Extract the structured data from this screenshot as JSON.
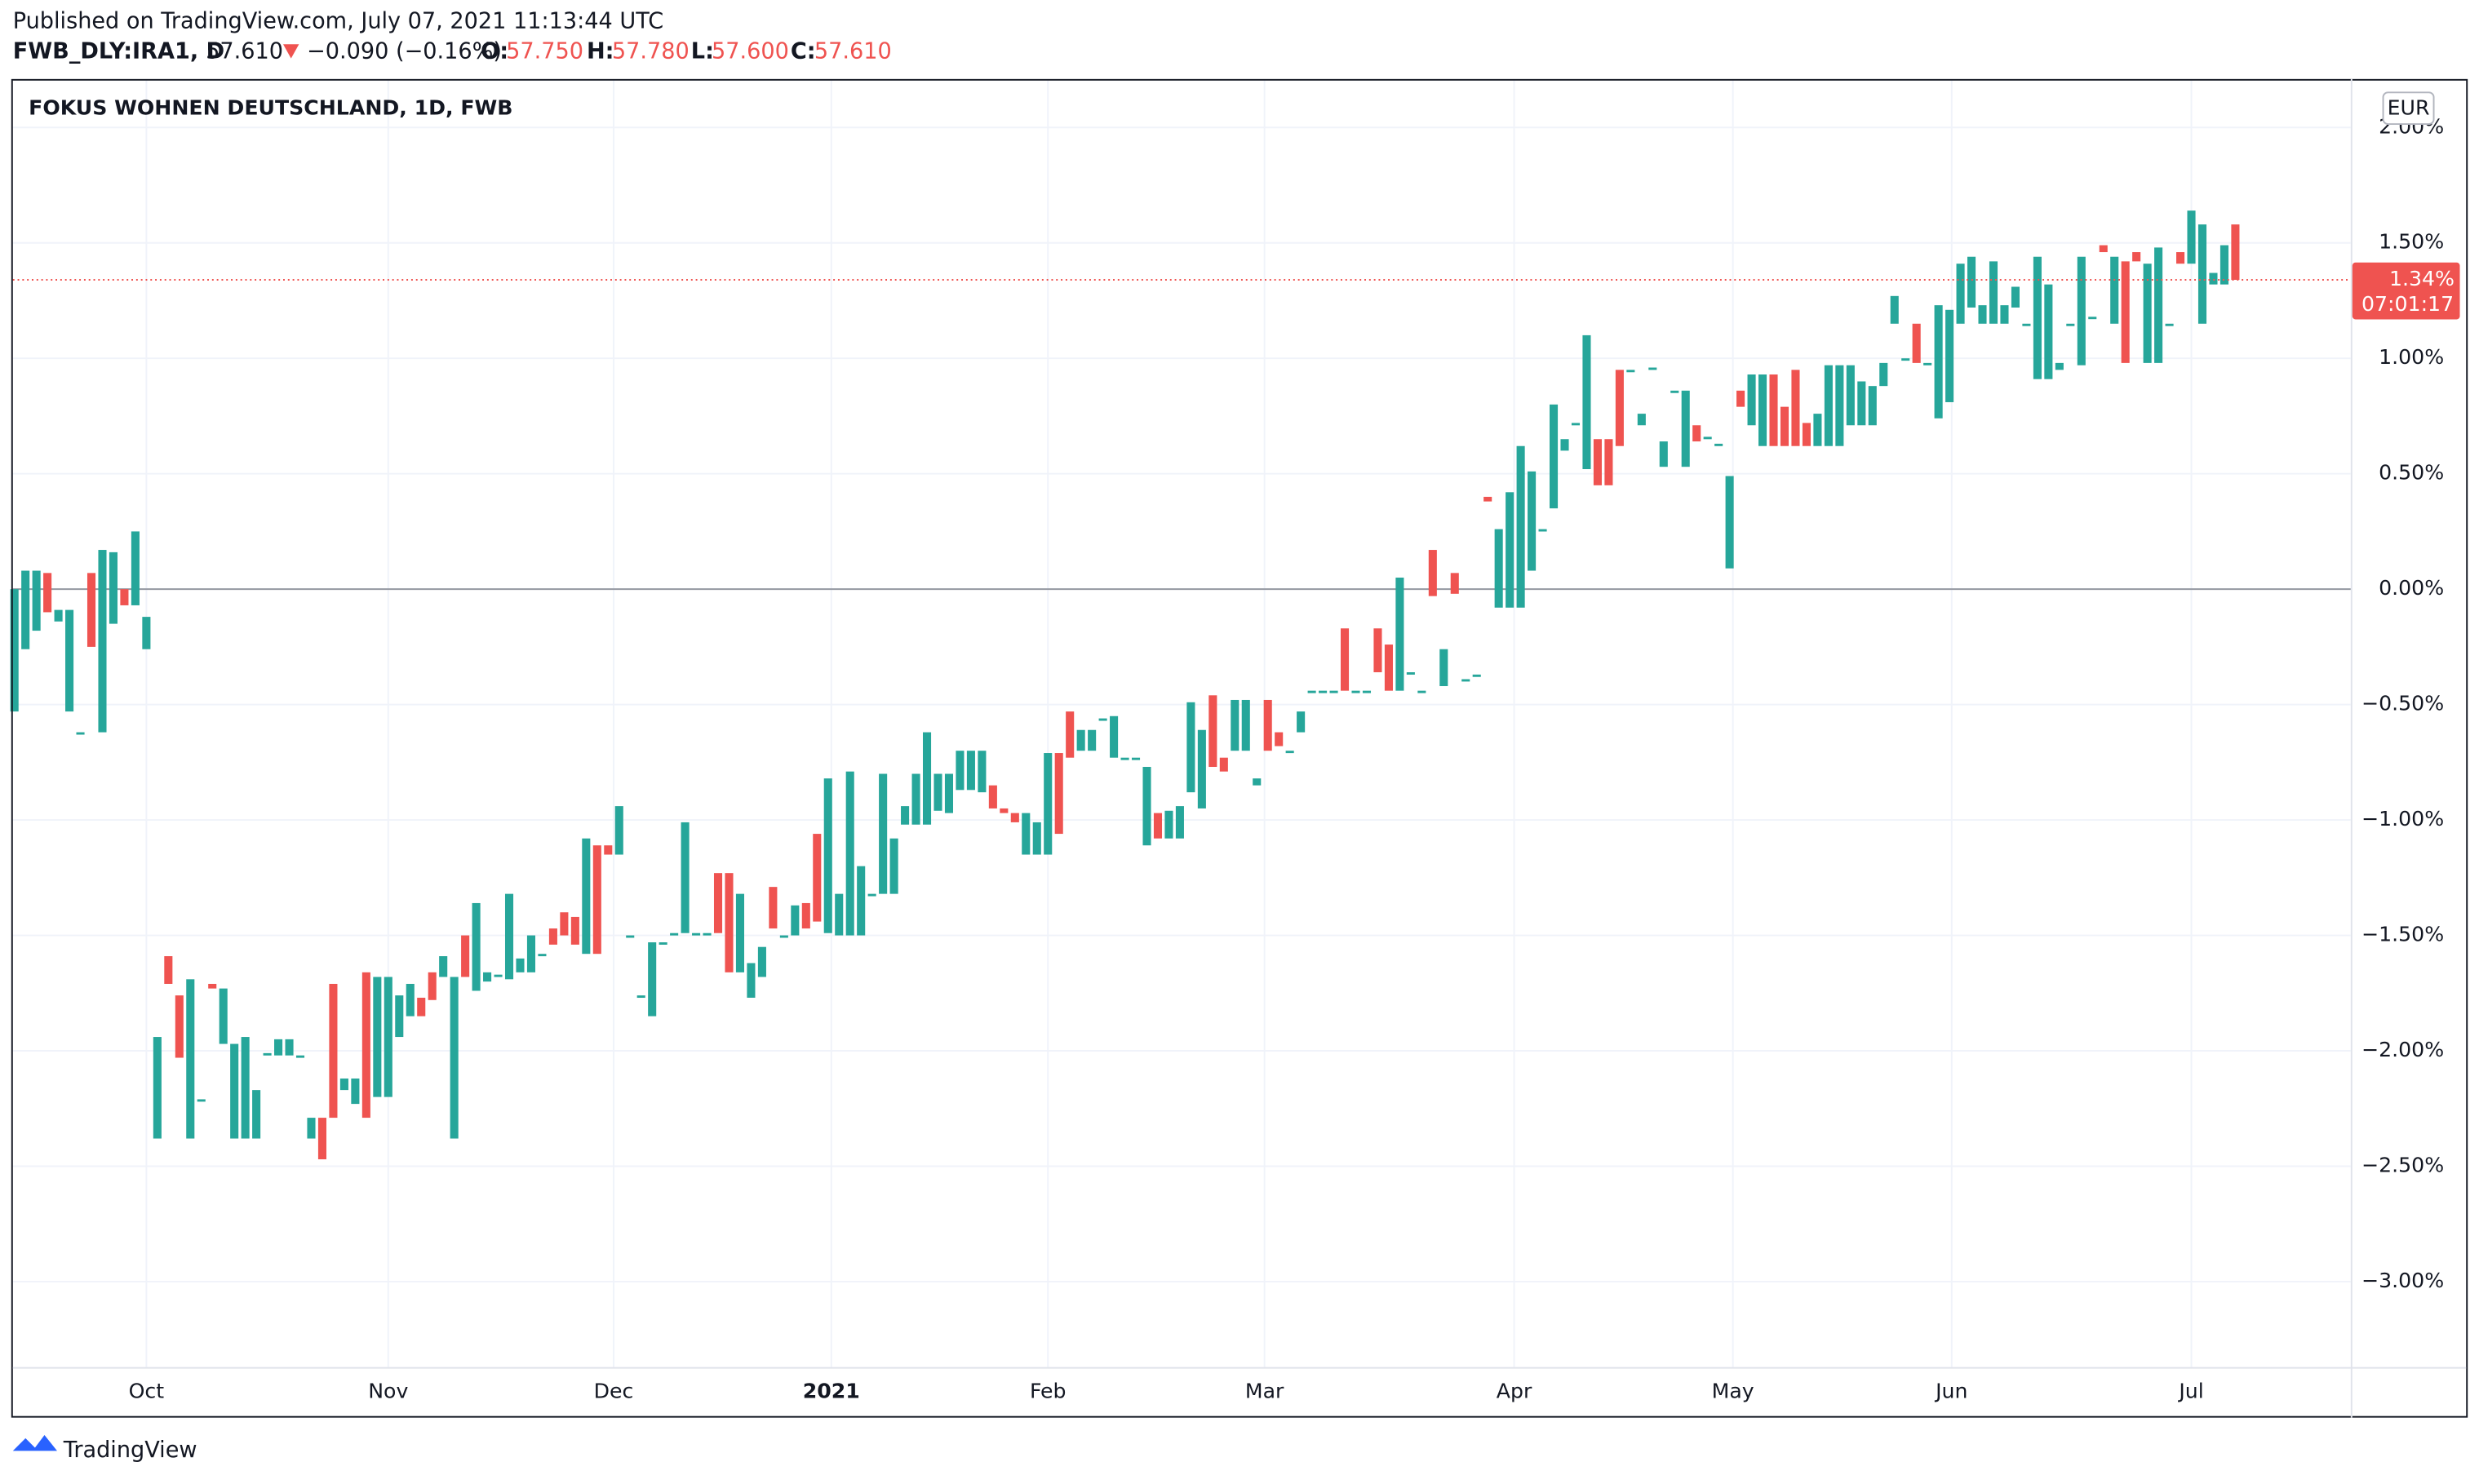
{
  "header": {
    "published": "Published on TradingView.com, July 07, 2021 11:13:44 UTC",
    "symbol": "FWB_DLY:IRA1, D",
    "last": "57.610",
    "change": "−0.090 (−0.16%)",
    "o_label": "O:",
    "o": "57.750",
    "h_label": "H:",
    "h": "57.780",
    "l_label": "L:",
    "l": "57.600",
    "c_label": "C:",
    "c": "57.610"
  },
  "footer": {
    "brand": "TradingView"
  },
  "chart_data": {
    "type": "candlestick",
    "title": "FOKUS WOHNEN DEUTSCHLAND, 1D, FWB",
    "currency": "EUR",
    "up_color": "#26a69a",
    "down_color": "#ef5350",
    "grid": true,
    "last_label": "1.34%",
    "countdown": "07:01:17",
    "ylim": [
      -3.37,
      2.21
    ],
    "yticks": [
      {
        "value": 2,
        "label": "2.00%"
      },
      {
        "value": 1.5,
        "label": "1.50%"
      },
      {
        "value": 1,
        "label": "1.00%"
      },
      {
        "value": 0.5,
        "label": "0.50%"
      },
      {
        "value": 0,
        "label": "0.00%"
      },
      {
        "value": -0.5,
        "label": "−0.50%"
      },
      {
        "value": -1,
        "label": "−1.00%"
      },
      {
        "value": -1.5,
        "label": "−1.50%"
      },
      {
        "value": -2,
        "label": "−2.00%"
      },
      {
        "value": -2.5,
        "label": "−2.50%"
      },
      {
        "value": -3,
        "label": "−3.00%"
      }
    ],
    "xticks": [
      {
        "value": 12,
        "label": "Oct"
      },
      {
        "value": 34,
        "label": "Nov"
      },
      {
        "value": 54.5,
        "label": "Dec"
      },
      {
        "value": 74.3,
        "label": "2021"
      },
      {
        "value": 94,
        "label": "Feb"
      },
      {
        "value": 113.7,
        "label": "Mar"
      },
      {
        "value": 136.4,
        "label": "Apr"
      },
      {
        "value": 156.3,
        "label": "May"
      },
      {
        "value": 176.2,
        "label": "Jun"
      },
      {
        "value": 198,
        "label": "Jul"
      }
    ],
    "open": [
      -0.53,
      -0.26,
      -0.18,
      0.07,
      -0.14,
      -0.53,
      -0.62,
      0.07,
      -0.62,
      -0.15,
      0.0,
      -0.07,
      -0.26,
      -2.38,
      -1.59,
      -1.76,
      -2.38,
      -2.21,
      -1.71,
      -1.97,
      -2.38,
      -2.38,
      -2.38,
      -2.01,
      -2.02,
      -2.02,
      -2.02,
      -2.38,
      -2.29,
      -1.71,
      -2.17,
      -2.23,
      -1.66,
      -2.2,
      -2.2,
      -1.94,
      -1.85,
      -1.77,
      -1.66,
      -1.68,
      -2.38,
      -1.5,
      -1.74,
      -1.7,
      -1.67,
      -1.69,
      -1.66,
      -1.66,
      -1.58,
      -1.47,
      -1.4,
      -1.42,
      -1.58,
      -1.11,
      -1.11,
      -1.15,
      -1.5,
      -1.76,
      -1.85,
      -1.53,
      -1.49,
      -1.49,
      -1.49,
      -1.49,
      -1.23,
      -1.23,
      -1.66,
      -1.77,
      -1.68,
      -1.29,
      -1.5,
      -1.5,
      -1.36,
      -1.06,
      -1.49,
      -1.5,
      -1.5,
      -1.5,
      -1.32,
      -1.32,
      -1.32,
      -1.02,
      -1.02,
      -1.02,
      -0.96,
      -0.97,
      -0.87,
      -0.87,
      -0.88,
      -0.85,
      -0.95,
      -0.97,
      -1.15,
      -1.15,
      -1.15,
      -0.71,
      -0.53,
      -0.7,
      -0.7,
      -0.56,
      -0.73,
      -0.73,
      -0.73,
      -1.11,
      -0.97,
      -1.08,
      -1.08,
      -0.88,
      -0.95,
      -0.46,
      -0.73,
      -0.7,
      -0.7,
      -0.85,
      -0.48,
      -0.62,
      -0.7,
      -0.62,
      -0.44,
      -0.44,
      -0.44,
      -0.17,
      -0.44,
      -0.44,
      -0.17,
      -0.24,
      -0.44,
      -0.36,
      -0.44,
      0.17,
      -0.42,
      0.07,
      -0.39,
      -0.37,
      0.4,
      -0.08,
      -0.08,
      -0.08,
      0.08,
      0.26,
      0.35,
      0.6,
      0.72,
      0.52,
      0.65,
      0.65,
      0.95,
      0.95,
      0.71,
      0.96,
      0.53,
      0.86,
      0.53,
      0.71,
      0.66,
      0.63,
      0.09,
      0.86,
      0.71,
      0.62,
      0.93,
      0.79,
      0.95,
      0.72,
      0.62,
      0.62,
      0.62,
      0.71,
      0.71,
      0.71,
      0.88,
      1.15,
      1.0,
      1.15,
      0.98,
      0.74,
      0.81,
      1.15,
      1.22,
      1.15,
      1.15,
      1.15,
      1.22,
      1.15,
      0.91,
      0.91,
      0.95,
      1.15,
      0.97,
      1.18,
      1.49,
      1.15,
      1.42,
      1.46,
      0.98,
      0.98,
      1.15,
      1.46,
      1.41,
      1.15,
      1.32,
      1.32,
      1.58
    ],
    "close": [
      0.0,
      0.08,
      0.08,
      -0.1,
      -0.09,
      -0.09,
      -0.62,
      -0.25,
      0.17,
      0.16,
      -0.07,
      0.25,
      -0.12,
      -1.94,
      -1.71,
      -2.03,
      -1.69,
      -2.21,
      -1.73,
      -1.73,
      -1.97,
      -1.94,
      -2.17,
      -2.01,
      -1.95,
      -1.95,
      -2.02,
      -2.29,
      -2.47,
      -2.29,
      -2.12,
      -2.12,
      -2.29,
      -1.68,
      -1.68,
      -1.76,
      -1.71,
      -1.85,
      -1.78,
      -1.59,
      -1.68,
      -1.68,
      -1.36,
      -1.66,
      -1.67,
      -1.32,
      -1.6,
      -1.5,
      -1.58,
      -1.54,
      -1.5,
      -1.54,
      -1.08,
      -1.58,
      -1.15,
      -0.94,
      -1.5,
      -1.76,
      -1.53,
      -1.53,
      -1.49,
      -1.01,
      -1.49,
      -1.49,
      -1.49,
      -1.66,
      -1.32,
      -1.62,
      -1.55,
      -1.47,
      -1.5,
      -1.37,
      -1.47,
      -1.44,
      -0.82,
      -1.32,
      -0.79,
      -1.2,
      -1.32,
      -0.8,
      -1.08,
      -0.94,
      -0.8,
      -0.62,
      -0.8,
      -0.8,
      -0.7,
      -0.7,
      -0.7,
      -0.95,
      -0.97,
      -1.01,
      -0.97,
      -1.01,
      -0.71,
      -1.06,
      -0.73,
      -0.61,
      -0.61,
      -0.56,
      -0.55,
      -0.73,
      -0.73,
      -0.77,
      -1.08,
      -0.96,
      -0.94,
      -0.49,
      -0.61,
      -0.77,
      -0.79,
      -0.48,
      -0.48,
      -0.82,
      -0.7,
      -0.68,
      -0.7,
      -0.53,
      -0.44,
      -0.44,
      -0.44,
      -0.44,
      -0.44,
      -0.44,
      -0.36,
      -0.44,
      0.05,
      -0.36,
      -0.44,
      -0.03,
      -0.26,
      -0.02,
      -0.39,
      -0.37,
      0.38,
      0.26,
      0.42,
      0.62,
      0.51,
      0.26,
      0.8,
      0.65,
      0.72,
      1.1,
      0.45,
      0.45,
      0.62,
      0.95,
      0.76,
      0.96,
      0.64,
      0.86,
      0.86,
      0.64,
      0.66,
      0.63,
      0.49,
      0.79,
      0.93,
      0.93,
      0.62,
      0.62,
      0.62,
      0.62,
      0.76,
      0.97,
      0.97,
      0.97,
      0.9,
      0.88,
      0.98,
      1.27,
      1.0,
      0.98,
      0.98,
      1.23,
      1.21,
      1.41,
      1.44,
      1.23,
      1.42,
      1.23,
      1.31,
      1.15,
      1.44,
      1.32,
      0.98,
      1.15,
      1.44,
      1.18,
      1.46,
      1.44,
      0.98,
      1.42,
      1.41,
      1.48,
      1.15,
      1.41,
      1.64,
      1.58,
      1.37,
      1.49,
      1.34
    ]
  }
}
